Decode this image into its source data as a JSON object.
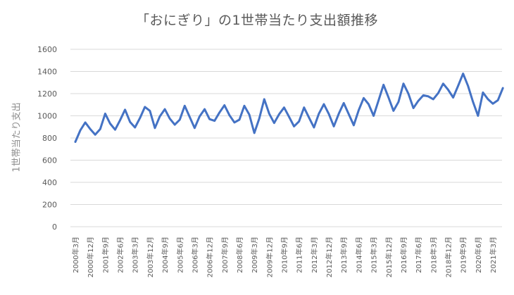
{
  "chart_data": {
    "type": "line",
    "title": "「おにぎり」の1世帯当たり支出額推移",
    "xlabel": "",
    "ylabel": "1世帯当たり支出",
    "ylim": [
      0,
      1600
    ],
    "yticks": [
      0,
      200,
      400,
      600,
      800,
      1000,
      1200,
      1400,
      1600
    ],
    "grid": true,
    "legend": "none",
    "line_color": "#4472c4",
    "x_tick_labels": [
      "2000年3月",
      "2000年12月",
      "2001年9月",
      "2002年6月",
      "2003年3月",
      "2003年12月",
      "2004年9月",
      "2005年6月",
      "2006年3月",
      "2006年12月",
      "2007年9月",
      "2008年6月",
      "2009年3月",
      "2009年12月",
      "2010年9月",
      "2011年6月",
      "2012年3月",
      "2012年12月",
      "2013年9月",
      "2014年6月",
      "2015年3月",
      "2015年12月",
      "2016年9月",
      "2017年6月",
      "2018年3月",
      "2018年12月",
      "2019年9月",
      "2020年6月",
      "2021年3月"
    ],
    "series": [
      {
        "name": "1世帯当たり支出",
        "values": [
          765,
          870,
          940,
          880,
          830,
          880,
          1020,
          930,
          875,
          960,
          1055,
          945,
          895,
          980,
          1080,
          1045,
          890,
          995,
          1060,
          975,
          920,
          965,
          1090,
          990,
          890,
          995,
          1060,
          970,
          955,
          1030,
          1095,
          1005,
          940,
          965,
          1090,
          1010,
          845,
          975,
          1150,
          1020,
          935,
          1015,
          1075,
          990,
          905,
          950,
          1075,
          985,
          895,
          1020,
          1105,
          1015,
          905,
          1020,
          1115,
          1015,
          915,
          1050,
          1160,
          1105,
          1000,
          1140,
          1280,
          1165,
          1045,
          1125,
          1290,
          1200,
          1070,
          1135,
          1185,
          1175,
          1150,
          1205,
          1290,
          1235,
          1165,
          1270,
          1380,
          1270,
          1125,
          1000,
          1210,
          1150,
          1110,
          1140,
          1250
        ]
      }
    ]
  }
}
